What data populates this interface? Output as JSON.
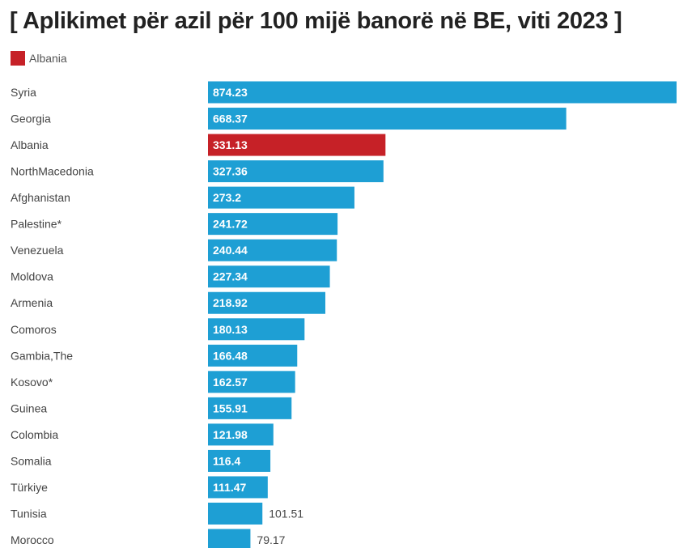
{
  "chart_data": {
    "type": "bar",
    "orientation": "horizontal",
    "title": "[ Aplikimet për azil për 100 mijë banorë në BE, viti 2023 ]",
    "legend": [
      {
        "label": "Albania",
        "color": "#c62127"
      }
    ],
    "legend_position": "top-left",
    "default_color": "#1e9fd4",
    "highlight_color": "#c62127",
    "highlight_category": "Albania",
    "categories": [
      "Syria",
      "Georgia",
      "Albania",
      "NorthMacedonia",
      "Afghanistan",
      "Palestine*",
      "Venezuela",
      "Moldova",
      "Armenia",
      "Comoros",
      "Gambia,The",
      "Kosovo*",
      "Guinea",
      "Colombia",
      "Somalia",
      "Türkiye",
      "Tunisia",
      "Morocco"
    ],
    "values": [
      "874.23",
      "668.37",
      "331.13",
      "327.36",
      "273.2",
      "241.72",
      "240.44",
      "227.34",
      "218.92",
      "180.13",
      "166.48",
      "162.57",
      "155.91",
      "121.98",
      "116.4",
      "111.47",
      "101.51",
      "79.17"
    ],
    "xlim": [
      0,
      874.23
    ],
    "grid": false
  }
}
